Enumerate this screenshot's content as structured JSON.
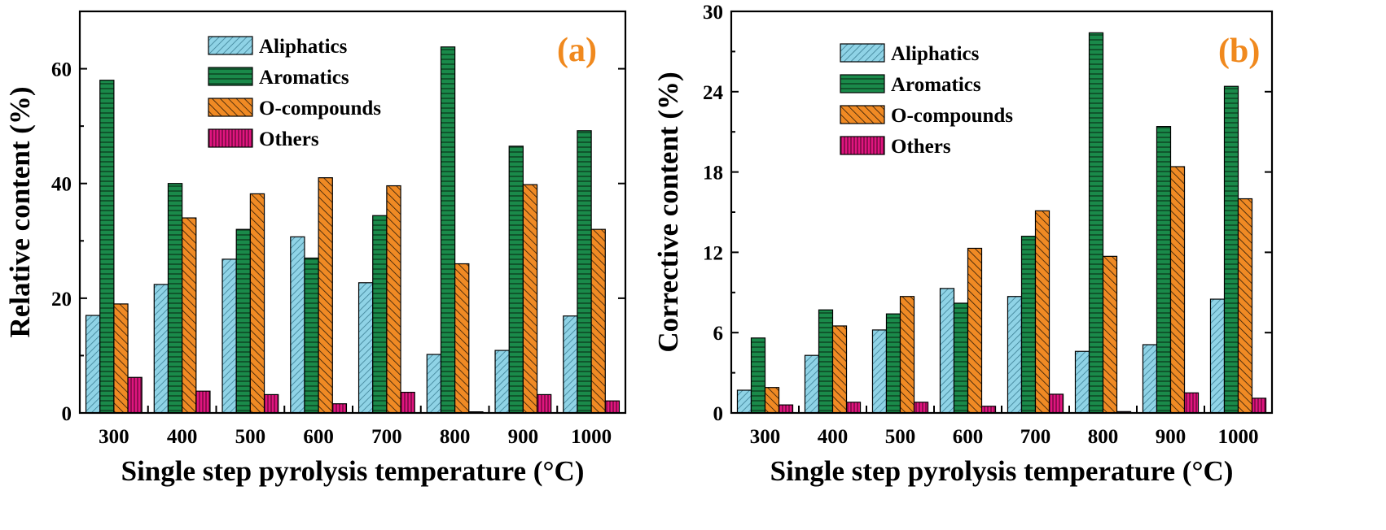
{
  "colors": {
    "Aliphatics": "#8fd3e6",
    "Aromatics": "#1a8a4a",
    "O-compounds": "#f08a24",
    "Others": "#e0157f",
    "panel_label": "#f0891e"
  },
  "chart_data": [
    {
      "type": "bar",
      "panel_label": "(a)",
      "categories": [
        "300",
        "400",
        "500",
        "600",
        "700",
        "800",
        "900",
        "1000"
      ],
      "series": [
        {
          "name": "Aliphatics",
          "values": [
            17,
            22.4,
            26.8,
            30.7,
            22.7,
            10.2,
            10.9,
            16.9
          ]
        },
        {
          "name": "Aromatics",
          "values": [
            58,
            40,
            32,
            27,
            34.4,
            63.8,
            46.5,
            49.2
          ]
        },
        {
          "name": "O-compounds",
          "values": [
            19,
            34,
            38.2,
            41,
            39.6,
            26,
            39.8,
            32
          ]
        },
        {
          "name": "Others",
          "values": [
            6.2,
            3.8,
            3.2,
            1.6,
            3.6,
            0.2,
            3.2,
            2.1
          ]
        }
      ],
      "xlabel": "Single step pyrolysis temperature (°C)",
      "ylabel": "Relative content (%)",
      "ylim": [
        0,
        70
      ],
      "yticks": [
        0,
        20,
        40,
        60
      ],
      "legend_position": "top-center"
    },
    {
      "type": "bar",
      "panel_label": "(b)",
      "categories": [
        "300",
        "400",
        "500",
        "600",
        "700",
        "800",
        "900",
        "1000"
      ],
      "series": [
        {
          "name": "Aliphatics",
          "values": [
            1.7,
            4.3,
            6.2,
            9.3,
            8.7,
            4.6,
            5.1,
            8.5
          ]
        },
        {
          "name": "Aromatics",
          "values": [
            5.6,
            7.7,
            7.4,
            8.2,
            13.2,
            28.4,
            21.4,
            24.4
          ]
        },
        {
          "name": "O-compounds",
          "values": [
            1.9,
            6.5,
            8.7,
            12.3,
            15.1,
            11.7,
            18.4,
            16
          ]
        },
        {
          "name": "Others",
          "values": [
            0.6,
            0.8,
            0.8,
            0.5,
            1.4,
            0.1,
            1.5,
            1.1
          ]
        }
      ],
      "xlabel": "Single step pyrolysis temperature (°C)",
      "ylabel": "Corrective content (%)",
      "ylim": [
        0,
        30
      ],
      "yticks": [
        0,
        6,
        12,
        18,
        24,
        30
      ],
      "legend_position": "top-center"
    }
  ]
}
